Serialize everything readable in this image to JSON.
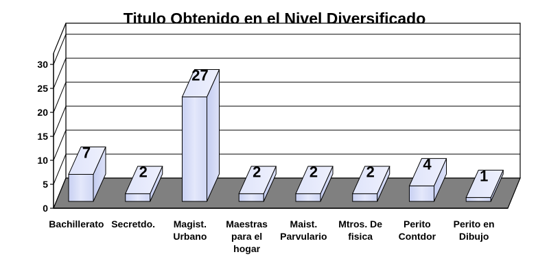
{
  "chart_data": {
    "type": "bar",
    "title": "Titulo Obtenido en el Nivel Diversificado",
    "categories": [
      "Bachillerato",
      "Secretdo.",
      "Magist.\nUrbano",
      "Maestras\npara el\nhogar",
      "Maist.\nParvulario",
      "Mtros. De\nfisica",
      "Perito\nContdor",
      "Perito en\nDibujo"
    ],
    "values": [
      7,
      2,
      27,
      2,
      2,
      2,
      4,
      1
    ],
    "data_labels": [
      "7",
      "2",
      "27",
      "2",
      "2",
      "2",
      "4",
      "1"
    ],
    "yticks": [
      "0",
      "5",
      "10",
      "15",
      "20",
      "25",
      "30"
    ],
    "ylim": [
      0,
      30
    ],
    "grid": true,
    "style": "3d-column",
    "colors": {
      "bar_front": "#d6dcf5",
      "bar_side": "#c0c8ee",
      "bar_top": "#e6eafb",
      "floor": "#808080",
      "wall": "#ffffff"
    }
  }
}
